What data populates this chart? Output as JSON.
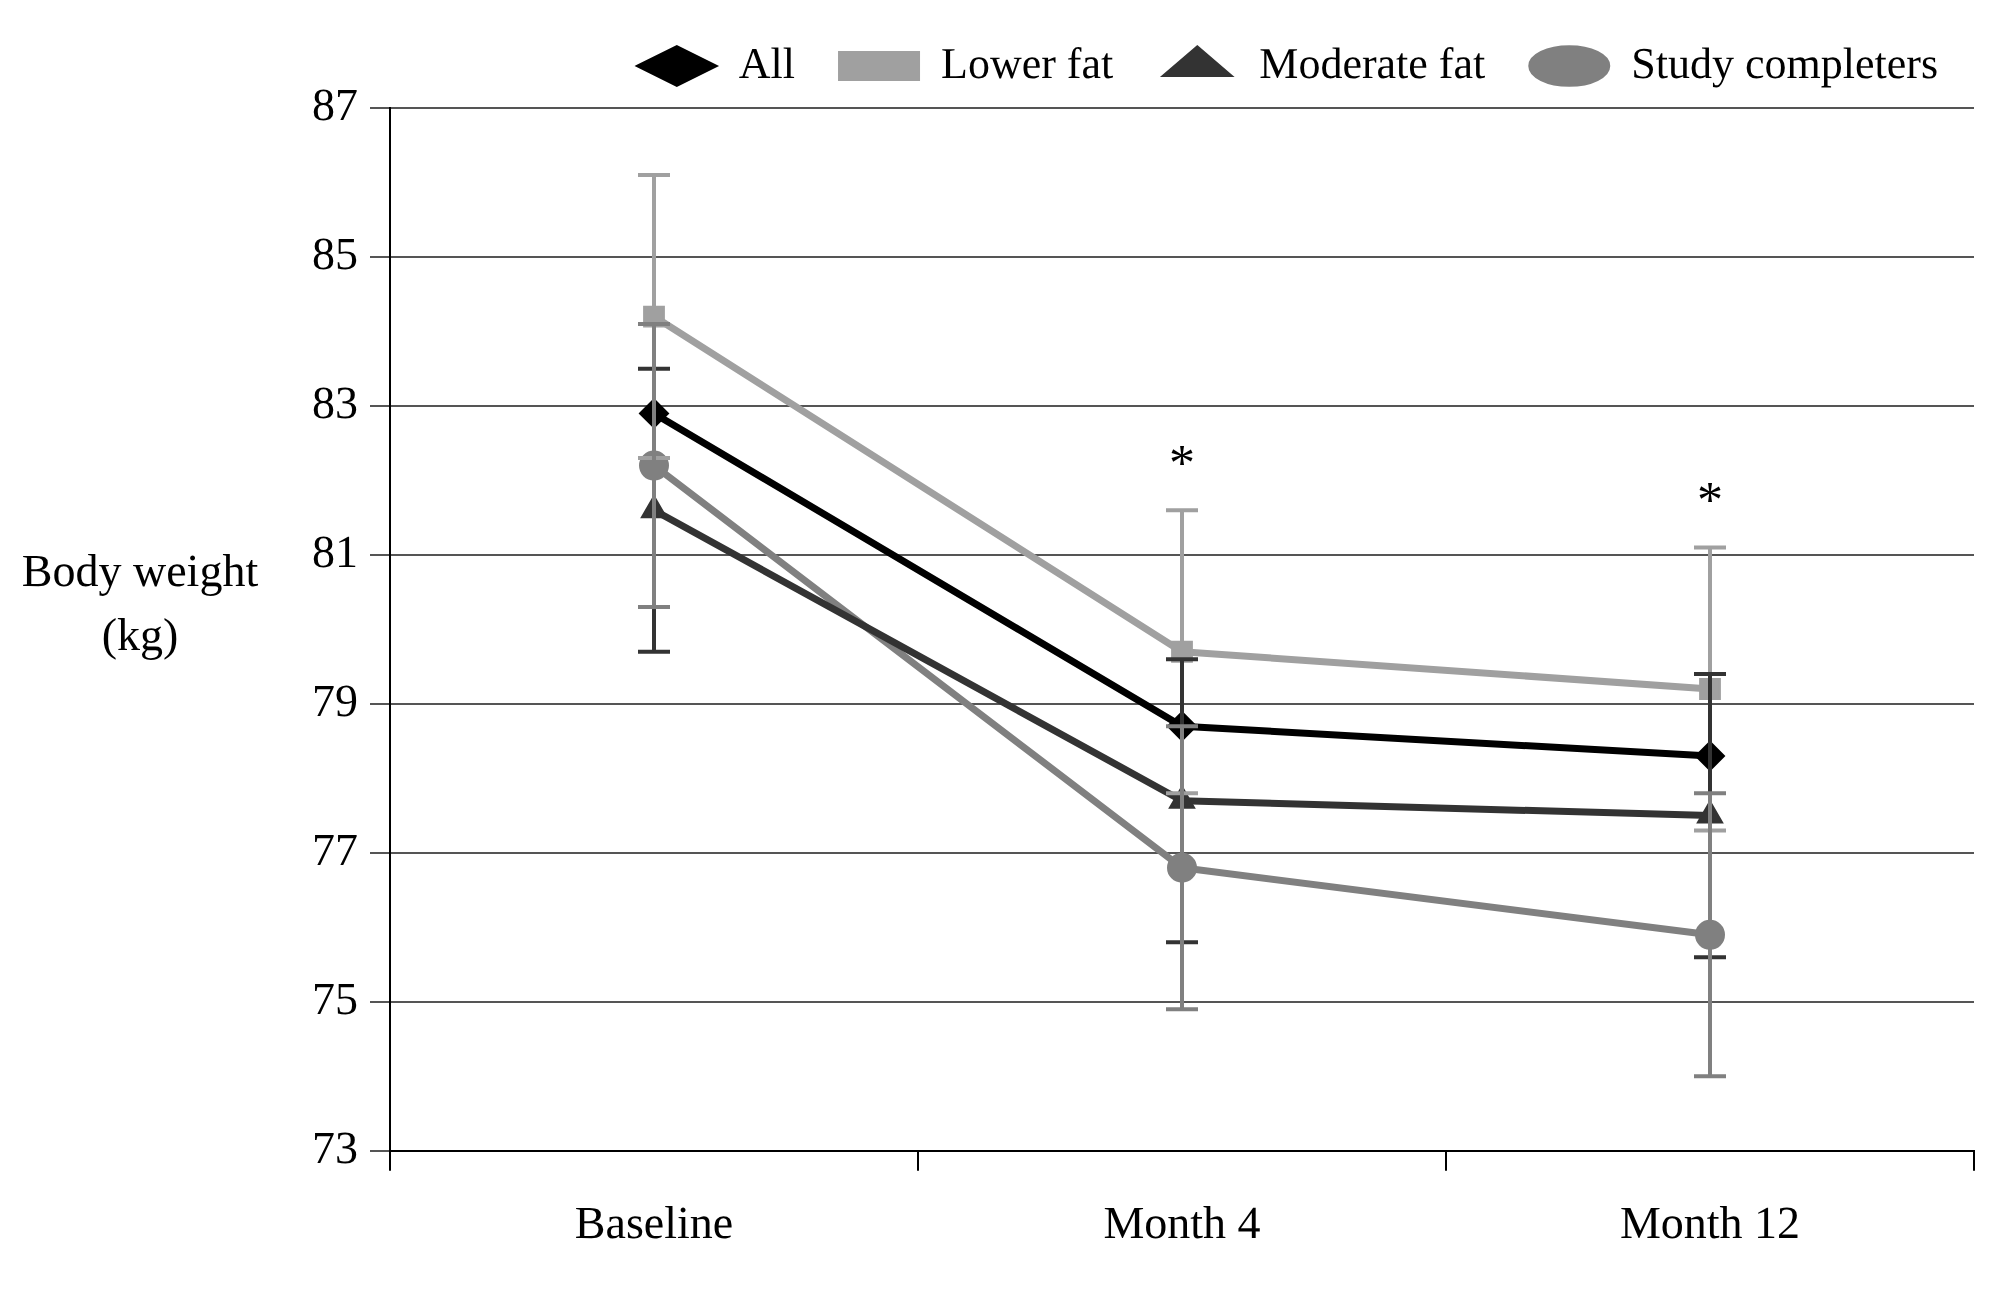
{
  "chart_data": {
    "type": "line",
    "ylabel": "Body weight (kg)",
    "categories": [
      "Baseline",
      "Month 4",
      "Month 12"
    ],
    "series": [
      {
        "name": "All",
        "color": "#000000",
        "marker": "diamond",
        "values": [
          82.9,
          78.7,
          78.3
        ]
      },
      {
        "name": "Lower fat",
        "color": "#a0a0a0",
        "marker": "square",
        "values": [
          84.2,
          79.7,
          79.2
        ],
        "errors": [
          1.9,
          1.9,
          1.9
        ]
      },
      {
        "name": "Moderate fat",
        "color": "#333333",
        "marker": "triangle",
        "values": [
          81.6,
          77.7,
          77.5
        ],
        "errors": [
          1.9,
          1.9,
          1.9
        ]
      },
      {
        "name": "Study completers",
        "color": "#808080",
        "marker": "circle",
        "values": [
          82.2,
          76.8,
          75.9
        ],
        "errors": [
          1.9,
          1.9,
          1.9
        ]
      }
    ],
    "ylim": [
      73,
      87
    ],
    "yticks": [
      73,
      75,
      77,
      79,
      81,
      83,
      85,
      87
    ],
    "grid": "y",
    "legend": "top right",
    "line_style": "solid",
    "annotations": [
      "*",
      "*"
    ]
  }
}
